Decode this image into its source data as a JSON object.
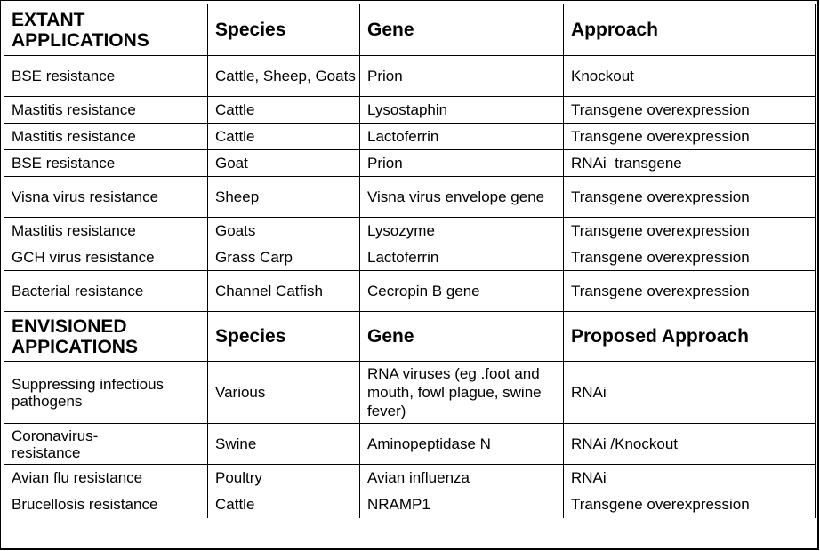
{
  "extant": {
    "header": [
      "EXTANT APPLICATIONS",
      "Species",
      "Gene",
      "Approach"
    ],
    "rows": [
      [
        "BSE resistance",
        "Cattle, Sheep, Goats",
        "Prion",
        "Knockout"
      ],
      [
        "Mastitis resistance",
        "Cattle",
        "Lysostaphin",
        "Transgene overexpression"
      ],
      [
        "Mastitis resistance",
        "Cattle",
        "Lactoferrin",
        "Transgene overexpression"
      ],
      [
        "BSE resistance",
        "Goat",
        "Prion",
        "RNAi  transgene"
      ],
      [
        "Visna virus resistance",
        "Sheep",
        "Visna virus envelope gene",
        "Transgene overexpression"
      ],
      [
        "Mastitis resistance",
        "Goats",
        "Lysozyme",
        "Transgene overexpression"
      ],
      [
        "GCH virus resistance",
        "Grass Carp",
        "Lactoferrin",
        "Transgene overexpression"
      ],
      [
        "Bacterial resistance",
        "Channel Catfish",
        "Cecropin B gene",
        "Transgene overexpression"
      ]
    ]
  },
  "envisioned": {
    "header": [
      "ENVISIONED APPICATIONS",
      "Species",
      "Gene",
      "Proposed Approach"
    ],
    "rows": [
      [
        "Suppressing infectious pathogens",
        "Various",
        "RNA viruses (eg .foot and mouth, fowl plague, swine fever)",
        "RNAi"
      ],
      [
        "Coronavirus-resistance",
        "Swine",
        "Aminopeptidase N",
        "RNAi /Knockout"
      ],
      [
        "Avian flu resistance",
        "Poultry",
        "Avian influenza",
        "RNAi"
      ],
      [
        "Brucellosis resistance",
        "Cattle",
        "NRAMP1",
        "Transgene overexpression"
      ]
    ]
  }
}
